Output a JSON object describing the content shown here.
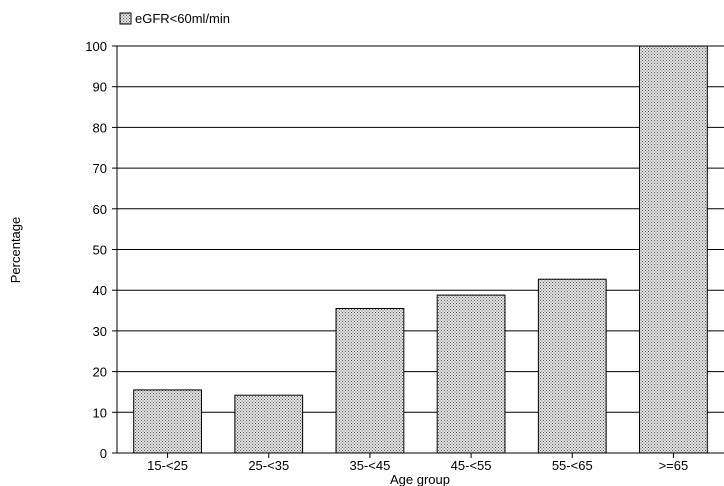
{
  "chart_data": {
    "type": "bar",
    "categories": [
      "15-<25",
      "25-<35",
      "35-<45",
      "45-<55",
      "55-<65",
      ">=65"
    ],
    "series": [
      {
        "name": "eGFR<60ml/min",
        "values": [
          15.5,
          14.2,
          35.5,
          38.8,
          42.7,
          100
        ]
      }
    ],
    "xlabel": "Age group",
    "ylabel": "Percentage",
    "ylim": [
      0,
      100
    ],
    "yticks": [
      0,
      10,
      20,
      30,
      40,
      50,
      60,
      70,
      80,
      90,
      100
    ],
    "grid": true,
    "legend_position": "top-left",
    "bar_fill": "dotted",
    "colors": {
      "bar_fill": "#e6e6e6",
      "bar_dots": "#555555",
      "axis": "#000000"
    }
  }
}
